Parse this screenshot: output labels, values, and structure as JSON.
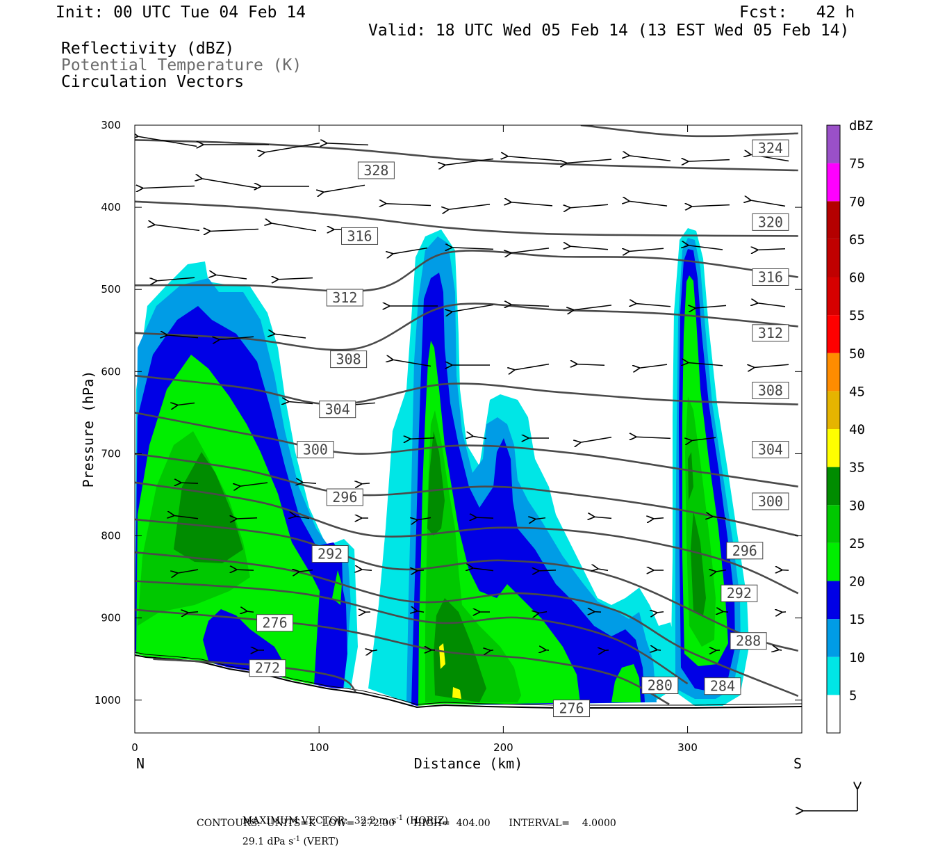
{
  "header": {
    "init": "Init: 00 UTC Tue 04 Feb 14",
    "fcst": "Fcst:   42 h",
    "valid": "Valid: 18 UTC Wed 05 Feb 14 (13 EST Wed 05 Feb 14)",
    "field1": "Reflectivity (dBZ)",
    "field2": "Potential Temperature (K)",
    "field3": "Circulation Vectors"
  },
  "footer": {
    "line1a": "MAXIMUM VECTOR:  32.2 m s",
    "line1b": "-1",
    "line1c": " (HORIZ)",
    "line1d": "29.1 dPa s",
    "line1e": "-1",
    "line1f": " (VERT)",
    "line2": "CONTOURS:  UNITS=K  LOW=  272.00      HIGH=  404.00      INTERVAL=    4.0000"
  },
  "colors": {
    "c5": "#00e6e6",
    "c10": "#009ce6",
    "c15": "#0000e6",
    "c20": "#00ee00",
    "c25": "#00c800",
    "c30": "#008c00",
    "c35": "#ffff00",
    "c40": "#e6b400",
    "c45": "#ff8c00",
    "c50": "#ff0000",
    "c55": "#d60000",
    "c60": "#c00000",
    "c65": "#b40000",
    "c70": "#ff00ff",
    "c75": "#9a50c8",
    "contour": "#4a4a4a"
  },
  "chart_data": {
    "type": "heatmap",
    "title": "",
    "xlabel": "Distance (km)",
    "ylabel": "Pressure (hPa)",
    "xlim": [
      0,
      362
    ],
    "ylim": [
      1040,
      300
    ],
    "xticks": [
      "0",
      "100",
      "200",
      "300"
    ],
    "yticks": [
      "300",
      "400",
      "500",
      "600",
      "700",
      "800",
      "900",
      "1000"
    ],
    "x_left_label": "N",
    "x_right_label": "S",
    "colorbar": {
      "title": "dBZ",
      "levels": [
        "5",
        "10",
        "15",
        "20",
        "25",
        "30",
        "35",
        "40",
        "45",
        "50",
        "55",
        "60",
        "65",
        "70",
        "75"
      ]
    },
    "theta_contours": [
      {
        "label": "324",
        "pts": [
          [
            242,
            300
          ],
          [
            300,
            313
          ],
          [
            360,
            310
          ]
        ]
      },
      {
        "label": "320",
        "pts": [
          [
            0,
            318
          ],
          [
            60,
            322
          ],
          [
            120,
            330
          ],
          [
            180,
            342
          ],
          [
            240,
            348
          ],
          [
            300,
            352
          ],
          [
            360,
            355
          ]
        ]
      },
      {
        "label": "316",
        "pts": [
          [
            0,
            393
          ],
          [
            60,
            400
          ],
          [
            120,
            412
          ],
          [
            170,
            425
          ],
          [
            220,
            432
          ],
          [
            280,
            434
          ],
          [
            360,
            435
          ]
        ]
      },
      {
        "label": "312",
        "pts": [
          [
            0,
            495
          ],
          [
            60,
            495
          ],
          [
            130,
            500
          ],
          [
            170,
            455
          ],
          [
            230,
            460
          ],
          [
            290,
            463
          ],
          [
            360,
            485
          ]
        ]
      },
      {
        "label": "308",
        "pts": [
          [
            0,
            553
          ],
          [
            60,
            560
          ],
          [
            120,
            572
          ],
          [
            170,
            520
          ],
          [
            230,
            525
          ],
          [
            290,
            530
          ],
          [
            360,
            545
          ]
        ]
      },
      {
        "label": "304",
        "pts": [
          [
            0,
            605
          ],
          [
            60,
            620
          ],
          [
            110,
            640
          ],
          [
            170,
            615
          ],
          [
            230,
            625
          ],
          [
            290,
            635
          ],
          [
            360,
            640
          ]
        ]
      },
      {
        "label": "300",
        "pts": [
          [
            0,
            650
          ],
          [
            70,
            680
          ],
          [
            120,
            700
          ],
          [
            180,
            690
          ],
          [
            240,
            700
          ],
          [
            300,
            720
          ],
          [
            360,
            740
          ]
        ]
      },
      {
        "label": "296",
        "pts": [
          [
            0,
            700
          ],
          [
            60,
            720
          ],
          [
            120,
            750
          ],
          [
            190,
            740
          ],
          [
            240,
            750
          ],
          [
            300,
            770
          ],
          [
            360,
            800
          ]
        ]
      },
      {
        "label": "292",
        "pts": [
          [
            0,
            735
          ],
          [
            70,
            760
          ],
          [
            130,
            800
          ],
          [
            200,
            790
          ],
          [
            260,
            800
          ],
          [
            320,
            830
          ],
          [
            360,
            870
          ]
        ]
      },
      {
        "label": "288",
        "pts": [
          [
            0,
            780
          ],
          [
            80,
            800
          ],
          [
            140,
            840
          ],
          [
            200,
            830
          ],
          [
            260,
            850
          ],
          [
            330,
            920
          ],
          [
            360,
            940
          ]
        ]
      },
      {
        "label": "284",
        "pts": [
          [
            0,
            820
          ],
          [
            80,
            840
          ],
          [
            150,
            880
          ],
          [
            210,
            870
          ],
          [
            260,
            890
          ],
          [
            300,
            940
          ],
          [
            360,
            995
          ]
        ]
      },
      {
        "label": "280",
        "pts": [
          [
            0,
            855
          ],
          [
            90,
            870
          ],
          [
            160,
            905
          ],
          [
            210,
            900
          ],
          [
            260,
            925
          ],
          [
            300,
            980
          ]
        ]
      },
      {
        "label": "276",
        "pts": [
          [
            0,
            890
          ],
          [
            100,
            910
          ],
          [
            165,
            940
          ],
          [
            215,
            950
          ],
          [
            260,
            970
          ],
          [
            290,
            1005
          ]
        ]
      },
      {
        "label": "272",
        "pts": [
          [
            10,
            950
          ],
          [
            70,
            958
          ],
          [
            110,
            972
          ],
          [
            120,
            990
          ]
        ]
      }
    ],
    "contour_labels": [
      {
        "v": "324",
        "x": 345,
        "p": 328
      },
      {
        "v": "328",
        "x": 131,
        "p": 355
      },
      {
        "v": "320",
        "x": 345,
        "p": 418
      },
      {
        "v": "316",
        "x": 122,
        "p": 435
      },
      {
        "v": "316",
        "x": 345,
        "p": 485
      },
      {
        "v": "312",
        "x": 114,
        "p": 510
      },
      {
        "v": "312",
        "x": 345,
        "p": 553
      },
      {
        "v": "308",
        "x": 116,
        "p": 585
      },
      {
        "v": "308",
        "x": 345,
        "p": 623
      },
      {
        "v": "304",
        "x": 110,
        "p": 646
      },
      {
        "v": "304",
        "x": 345,
        "p": 695
      },
      {
        "v": "300",
        "x": 98,
        "p": 695
      },
      {
        "v": "300",
        "x": 345,
        "p": 758
      },
      {
        "v": "296",
        "x": 114,
        "p": 753
      },
      {
        "v": "296",
        "x": 331,
        "p": 818
      },
      {
        "v": "292",
        "x": 106,
        "p": 822
      },
      {
        "v": "292",
        "x": 328,
        "p": 870
      },
      {
        "v": "288",
        "x": 333,
        "p": 928
      },
      {
        "v": "284",
        "x": 319,
        "p": 983
      },
      {
        "v": "280",
        "x": 285,
        "p": 982
      },
      {
        "v": "276",
        "x": 76,
        "p": 906
      },
      {
        "v": "272",
        "x": 72,
        "p": 961
      },
      {
        "v": "276",
        "x": 237,
        "p": 1010
      }
    ]
  }
}
